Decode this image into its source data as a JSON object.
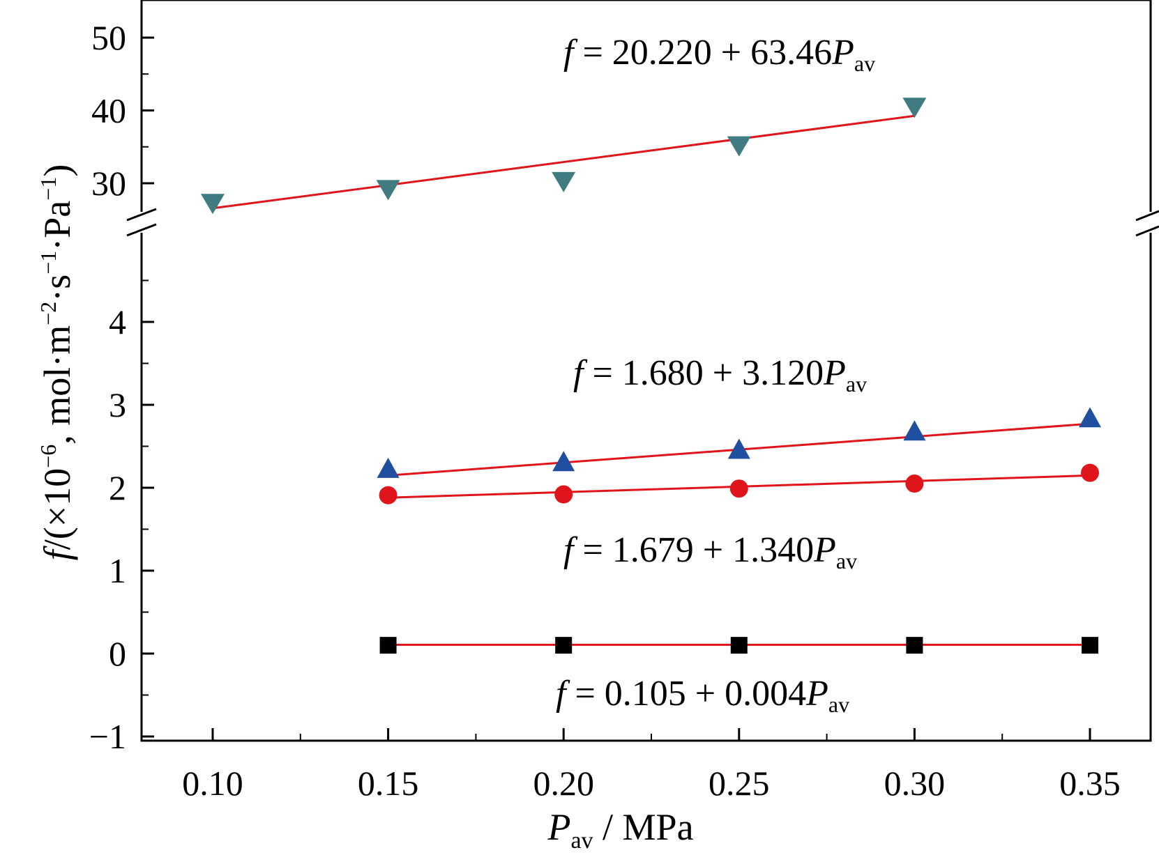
{
  "chart_data": {
    "type": "scatter",
    "title": "",
    "xlabel": {
      "symbol": "P",
      "sub": "av",
      "unit": " / MPa"
    },
    "ylabel": {
      "symbol": "f",
      "text": "/(×10",
      "exp": "−6",
      "rest": ", mol·m",
      "exp2": "−2",
      "rest2": "·s",
      "exp3": "−1",
      "rest3": "·Pa",
      "exp4": "−1",
      "close": ")"
    },
    "xlim": [
      0.08,
      0.36
    ],
    "x_ticks": [
      "0.10",
      "0.15",
      "0.20",
      "0.25",
      "0.30",
      "0.35"
    ],
    "x_tick_values": [
      0.1,
      0.15,
      0.2,
      0.25,
      0.3,
      0.35
    ],
    "y_axis_lower": {
      "ylim": [
        -1,
        5
      ],
      "ticks": [
        "−1",
        "0",
        "1",
        "2",
        "3",
        "4"
      ],
      "tick_values": [
        -1,
        0,
        1,
        2,
        3,
        4
      ]
    },
    "y_axis_upper": {
      "ylim": [
        25,
        55
      ],
      "ticks": [
        "30",
        "40",
        "50"
      ],
      "tick_values": [
        30,
        40,
        50
      ]
    },
    "axis_break": true,
    "series": [
      {
        "marker": "triangle-down",
        "color": "#3f7b80",
        "axis": "upper",
        "x": [
          0.1,
          0.15,
          0.2,
          0.25,
          0.3
        ],
        "y": [
          27.3,
          29.2,
          30.3,
          35.2,
          40.5
        ],
        "fit": {
          "intercept": 20.22,
          "slope": 63.46
        },
        "equation": {
          "lhs": "f",
          "rhs": " = 20.220 + 63.46",
          "var": "P",
          "sub": "av"
        }
      },
      {
        "marker": "triangle-up",
        "color": "#1f4f9e",
        "axis": "lower",
        "x": [
          0.15,
          0.2,
          0.25,
          0.3,
          0.35
        ],
        "y": [
          2.22,
          2.3,
          2.45,
          2.67,
          2.83
        ],
        "fit": {
          "intercept": 1.68,
          "slope": 3.12
        },
        "equation": {
          "lhs": "f",
          "rhs": " = 1.680 + 3.120",
          "var": "P",
          "sub": "av"
        }
      },
      {
        "marker": "circle",
        "color": "#e0141b",
        "axis": "lower",
        "x": [
          0.15,
          0.2,
          0.25,
          0.3,
          0.35
        ],
        "y": [
          1.91,
          1.92,
          1.99,
          2.05,
          2.18
        ],
        "fit": {
          "intercept": 1.679,
          "slope": 1.34
        },
        "equation": {
          "lhs": "f",
          "rhs": " = 1.679 + 1.340",
          "var": "P",
          "sub": "av"
        }
      },
      {
        "marker": "square",
        "color": "#000000",
        "axis": "lower",
        "x": [
          0.15,
          0.2,
          0.25,
          0.3,
          0.35
        ],
        "y": [
          0.1,
          0.1,
          0.1,
          0.1,
          0.1
        ],
        "fit": {
          "intercept": 0.105,
          "slope": 0.004
        },
        "equation": {
          "lhs": "f",
          "rhs": " = 0.105 + 0.004",
          "var": "P",
          "sub": "av"
        }
      }
    ],
    "fit_line_color": "#e0141b",
    "grid": false,
    "legend": "none"
  }
}
